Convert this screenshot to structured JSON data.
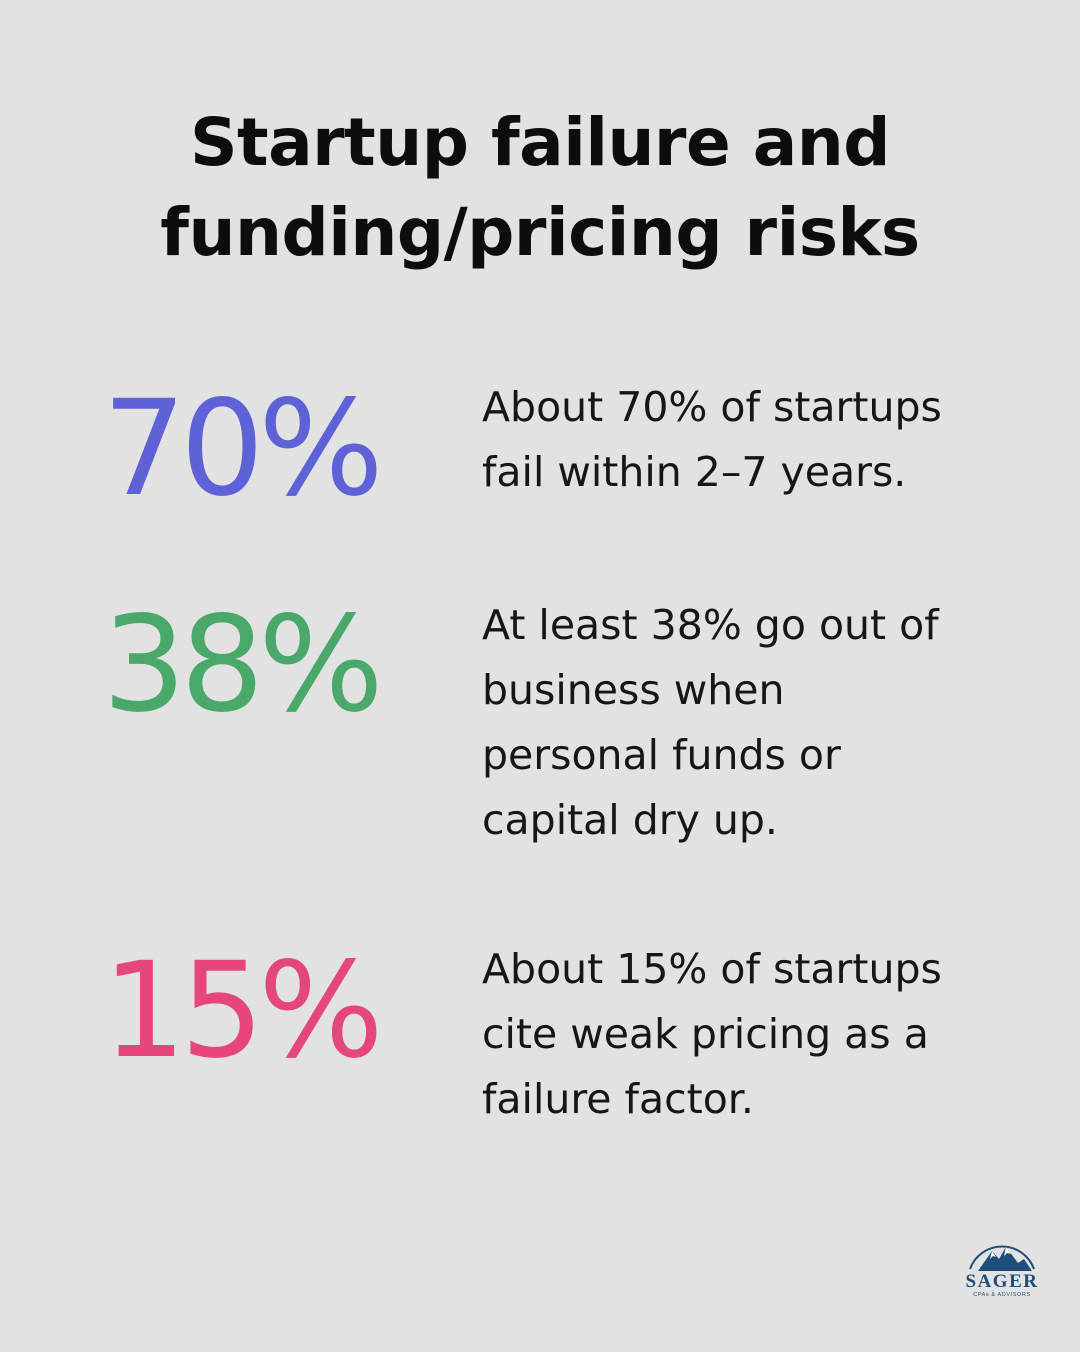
{
  "title": {
    "line1": "Startup failure and",
    "line2": "funding/pricing risks"
  },
  "stats": [
    {
      "value": "70%",
      "color": "#5f61d6",
      "lines": [
        "About 70% of startups",
        "fail within 2–7 years."
      ]
    },
    {
      "value": "38%",
      "color": "#4aa86a",
      "lines": [
        "At least 38% go out of",
        "business when",
        "personal funds or",
        "capital dry up."
      ]
    },
    {
      "value": "15%",
      "color": "#e5477a",
      "lines": [
        "About 15% of startups",
        "cite weak pricing as a",
        "failure factor."
      ]
    }
  ],
  "logo": {
    "name": "SAGER",
    "tagline": "CPAs & ADVISORS",
    "color": "#1f4e7a"
  }
}
